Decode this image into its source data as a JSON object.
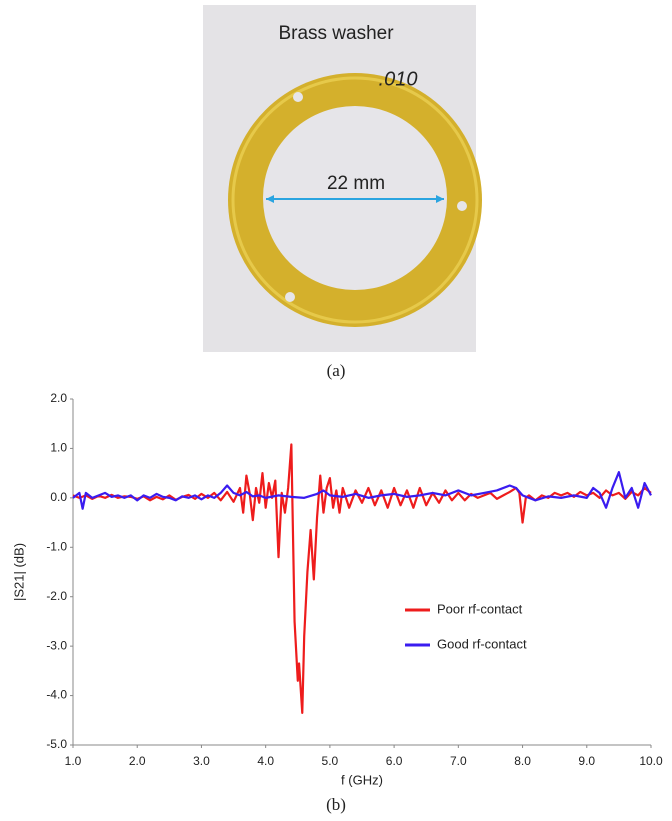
{
  "photo": {
    "title": "Brass washer",
    "marking": ".010",
    "dimension": "22 mm"
  },
  "captions": [
    "(a)",
    "(b)"
  ],
  "chart_data": {
    "type": "line",
    "xlabel": "f (GHz)",
    "ylabel": "|S21| (dB)",
    "xlim": [
      1,
      10
    ],
    "ylim": [
      -5,
      2
    ],
    "xticks": [
      {
        "value": 1,
        "label": "1.0"
      },
      {
        "value": 2,
        "label": "2.0"
      },
      {
        "value": 3,
        "label": "3.0"
      },
      {
        "value": 4,
        "label": "4.0"
      },
      {
        "value": 5,
        "label": "5.0"
      },
      {
        "value": 6,
        "label": "6.0"
      },
      {
        "value": 7,
        "label": "7.0"
      },
      {
        "value": 8,
        "label": "8.0"
      },
      {
        "value": 9,
        "label": "9.0"
      },
      {
        "value": 10,
        "label": "10.0"
      }
    ],
    "yticks": [
      {
        "value": -5,
        "label": "-5.0"
      },
      {
        "value": -4,
        "label": "-4.0"
      },
      {
        "value": -3,
        "label": "-3.0"
      },
      {
        "value": -2,
        "label": "-2.0"
      },
      {
        "value": -1,
        "label": "-1.0"
      },
      {
        "value": 0,
        "label": "0.0"
      },
      {
        "value": 1,
        "label": "1.0"
      },
      {
        "value": 2,
        "label": "2.0"
      }
    ],
    "grid": false,
    "legend": "right",
    "series": [
      {
        "name": "Poor rf-contact",
        "color": "#ee1c1c",
        "x": [
          1.0,
          1.1,
          1.2,
          1.3,
          1.4,
          1.5,
          1.6,
          1.7,
          1.8,
          1.9,
          2.0,
          2.1,
          2.2,
          2.3,
          2.4,
          2.5,
          2.6,
          2.7,
          2.8,
          2.9,
          3.0,
          3.1,
          3.2,
          3.3,
          3.4,
          3.5,
          3.6,
          3.65,
          3.7,
          3.75,
          3.8,
          3.85,
          3.9,
          3.95,
          4.0,
          4.05,
          4.1,
          4.15,
          4.2,
          4.25,
          4.3,
          4.35,
          4.4,
          4.45,
          4.5,
          4.52,
          4.57,
          4.6,
          4.65,
          4.7,
          4.75,
          4.8,
          4.85,
          4.9,
          4.95,
          5.0,
          5.05,
          5.1,
          5.15,
          5.2,
          5.3,
          5.4,
          5.5,
          5.6,
          5.7,
          5.8,
          5.9,
          6.0,
          6.1,
          6.2,
          6.3,
          6.4,
          6.5,
          6.6,
          6.7,
          6.8,
          6.9,
          7.0,
          7.1,
          7.2,
          7.3,
          7.4,
          7.5,
          7.6,
          7.7,
          7.8,
          7.9,
          7.95,
          8.0,
          8.05,
          8.1,
          8.2,
          8.3,
          8.4,
          8.5,
          8.6,
          8.7,
          8.8,
          8.9,
          9.0,
          9.1,
          9.2,
          9.3,
          9.4,
          9.5,
          9.6,
          9.7,
          9.8,
          9.9,
          10.0
        ],
        "values": [
          0.05,
          0.0,
          0.05,
          -0.02,
          0.04,
          0.0,
          0.06,
          0.0,
          0.03,
          0.02,
          -0.02,
          0.03,
          -0.05,
          0.02,
          -0.03,
          0.05,
          -0.04,
          0.02,
          0.06,
          -0.02,
          0.08,
          0.0,
          0.1,
          -0.05,
          0.12,
          -0.08,
          0.2,
          -0.3,
          0.45,
          0.1,
          -0.45,
          0.2,
          -0.1,
          0.5,
          -0.2,
          0.3,
          0.0,
          0.35,
          -1.2,
          0.1,
          -0.3,
          0.2,
          1.08,
          -2.5,
          -3.7,
          -3.35,
          -4.35,
          -2.8,
          -1.5,
          -0.65,
          -1.65,
          -0.4,
          0.45,
          -0.3,
          0.2,
          0.4,
          -0.2,
          0.15,
          -0.3,
          0.2,
          -0.2,
          0.15,
          -0.1,
          0.2,
          -0.15,
          0.15,
          -0.2,
          0.2,
          -0.15,
          0.15,
          -0.2,
          0.2,
          -0.15,
          0.1,
          -0.1,
          0.15,
          -0.05,
          0.1,
          -0.05,
          0.08,
          0.0,
          0.05,
          0.1,
          -0.02,
          0.05,
          0.12,
          0.2,
          0.1,
          -0.5,
          0.0,
          0.05,
          -0.05,
          0.05,
          0.0,
          0.1,
          0.05,
          0.1,
          0.02,
          0.12,
          0.05,
          0.1,
          0.0,
          0.15,
          0.05,
          0.1,
          -0.02,
          0.12,
          0.05,
          0.2,
          0.1
        ]
      },
      {
        "name": "Good rf-contact",
        "color": "#3a1cf0",
        "x": [
          1.0,
          1.1,
          1.15,
          1.2,
          1.3,
          1.4,
          1.5,
          1.6,
          1.7,
          1.8,
          1.9,
          2.0,
          2.1,
          2.2,
          2.3,
          2.4,
          2.5,
          2.6,
          2.7,
          2.8,
          2.9,
          3.0,
          3.1,
          3.2,
          3.3,
          3.4,
          3.5,
          3.6,
          3.7,
          3.8,
          3.9,
          4.0,
          4.2,
          4.4,
          4.6,
          4.8,
          4.9,
          5.0,
          5.2,
          5.4,
          5.6,
          5.8,
          6.0,
          6.2,
          6.4,
          6.6,
          6.8,
          7.0,
          7.2,
          7.4,
          7.6,
          7.8,
          7.9,
          8.0,
          8.2,
          8.4,
          8.6,
          8.8,
          9.0,
          9.1,
          9.2,
          9.3,
          9.4,
          9.5,
          9.6,
          9.7,
          9.8,
          9.9,
          10.0
        ],
        "values": [
          0.0,
          0.1,
          -0.22,
          0.1,
          0.0,
          0.05,
          0.1,
          0.02,
          0.05,
          0.0,
          0.05,
          -0.05,
          0.05,
          0.0,
          0.08,
          0.02,
          0.0,
          -0.05,
          0.03,
          0.0,
          0.05,
          -0.03,
          0.05,
          0.0,
          0.1,
          0.25,
          0.1,
          0.05,
          0.12,
          0.03,
          0.05,
          0.0,
          0.05,
          0.02,
          0.0,
          0.08,
          0.15,
          0.05,
          0.02,
          0.08,
          0.0,
          0.05,
          0.08,
          0.02,
          0.05,
          0.1,
          0.05,
          0.15,
          0.05,
          0.1,
          0.15,
          0.25,
          0.2,
          0.05,
          -0.05,
          0.03,
          0.0,
          0.05,
          0.0,
          0.2,
          0.1,
          -0.2,
          0.2,
          0.52,
          0.0,
          0.2,
          -0.2,
          0.3,
          0.05
        ]
      }
    ]
  }
}
